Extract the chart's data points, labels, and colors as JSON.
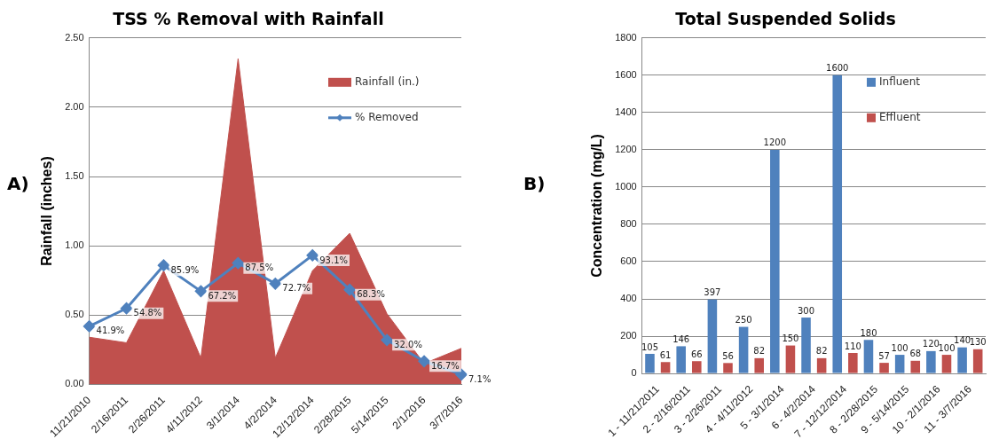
{
  "chart_data": [
    {
      "type": "area",
      "title": "TSS % Removal with Rainfall",
      "ylabel": "Rainfall (inches)",
      "annotations": [
        "A)"
      ],
      "categories": [
        "11/21/2010",
        "2/16/2011",
        "2/26/2011",
        "4/11/2012",
        "3/1/2014",
        "4/2/2014",
        "12/12/2014",
        "2/28/2015",
        "5/14/2015",
        "2/1/2016",
        "3/7/2016"
      ],
      "series": [
        {
          "name": "Rainfall (in.)",
          "type": "area",
          "color": "#c0504d",
          "values": [
            0.34,
            0.3,
            0.82,
            0.19,
            2.35,
            0.19,
            0.82,
            1.09,
            0.51,
            0.15,
            0.26
          ]
        },
        {
          "name": "% Removed",
          "type": "line",
          "color": "#4f81bd",
          "marker": "diamond",
          "values": [
            0.419,
            0.548,
            0.859,
            0.672,
            0.875,
            0.727,
            0.931,
            0.683,
            0.32,
            0.167,
            0.071
          ],
          "value_labels": [
            "41.9%",
            "54.8%",
            "85.9%",
            "67.2%",
            "87.5%",
            "72.7%",
            "93.1%",
            "68.3%",
            "32.0%",
            "16.7%",
            "7.1%"
          ]
        }
      ],
      "ylim": [
        0,
        2.5
      ],
      "yticks": [
        {
          "value": 0,
          "label": "0.00"
        },
        {
          "value": 0.5,
          "label": "0.50"
        },
        {
          "value": 1,
          "label": "1.00"
        },
        {
          "value": 1.5,
          "label": "1.50"
        },
        {
          "value": 2,
          "label": "2.00"
        },
        {
          "value": 2.5,
          "label": "2.50"
        }
      ],
      "grid": "y",
      "legend": "top right"
    },
    {
      "type": "bar",
      "title": "Total Suspended Solids",
      "ylabel": "Concentration (mg/L)",
      "annotations": [
        "B)"
      ],
      "categories": [
        "1 - 11/21/2011",
        "2 - 2/16/2011",
        "3 - 2/26/2011",
        "4 - 4/11/2012",
        "5 - 3/1/2014",
        "6 - 4/2/2014",
        "7 - 12/12/2014",
        "8 - 2/28/2015",
        "9 - 5/14/2015",
        "10 - 2/1/2016",
        "11 - 3/7/2016"
      ],
      "series": [
        {
          "name": "Influent",
          "color": "#4f81bd",
          "values": [
            105,
            146,
            397,
            250,
            1200,
            300,
            1600,
            180,
            100,
            120,
            140
          ]
        },
        {
          "name": "Effluent",
          "color": "#c0504d",
          "values": [
            61,
            66,
            56,
            82,
            150,
            82,
            110,
            57,
            68,
            100,
            130
          ]
        }
      ],
      "ylim": [
        0,
        1800
      ],
      "yticks": [
        0,
        200,
        400,
        600,
        800,
        1000,
        1200,
        1400,
        1600,
        1800
      ],
      "grid": "y",
      "legend": "top right",
      "data_labels": true
    }
  ]
}
